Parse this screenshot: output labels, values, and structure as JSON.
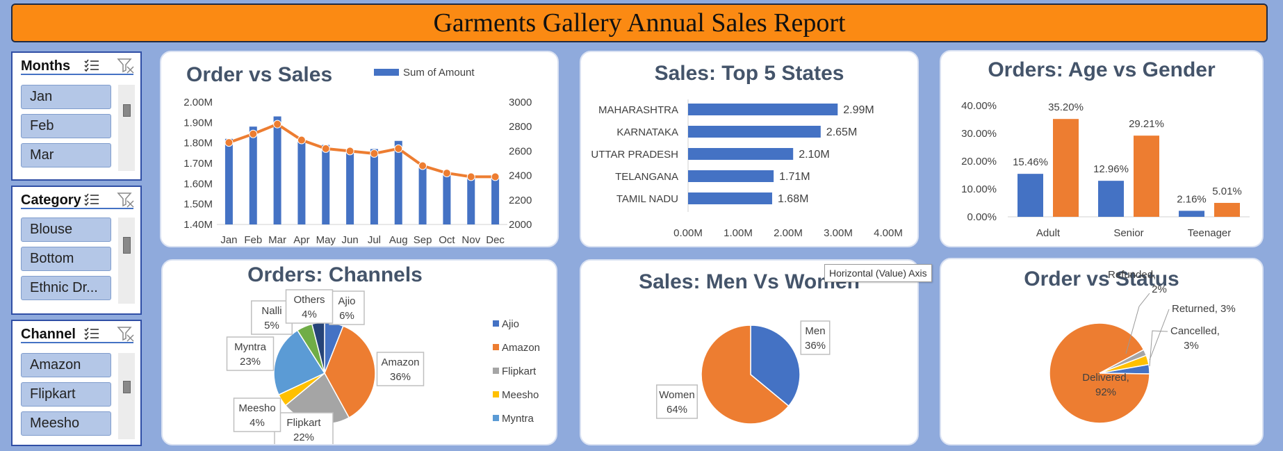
{
  "report_title": "Garments Gallery Annual Sales Report",
  "tooltip": "Horizontal (Value) Axis",
  "colors": {
    "background": "#8faadc",
    "title_bar": "#fb8a13",
    "blue": "#4472c4",
    "orange": "#ed7d31",
    "gray": "#a5a5a5",
    "yellow": "#ffc000",
    "light_blue": "#5b9bd5",
    "green": "#70ad47",
    "navy": "#264478"
  },
  "slicers": [
    {
      "title": "Months",
      "items": [
        "Jan",
        "Feb",
        "Mar"
      ],
      "icons": [
        "multi-select-icon",
        "clear-filter-icon"
      ]
    },
    {
      "title": "Category",
      "items": [
        "Blouse",
        "Bottom",
        "Ethnic Dr..."
      ],
      "icons": [
        "multi-select-icon",
        "clear-filter-icon"
      ]
    },
    {
      "title": "Channel",
      "items": [
        "Amazon",
        "Flipkart",
        "Meesho"
      ],
      "icons": [
        "multi-select-icon",
        "clear-filter-icon"
      ]
    }
  ],
  "chart_data": [
    {
      "id": "order_vs_sales",
      "type": "bar",
      "title": "Order vs Sales",
      "categories": [
        "Jan",
        "Feb",
        "Mar",
        "Apr",
        "May",
        "Jun",
        "Jul",
        "Aug",
        "Sep",
        "Oct",
        "Nov",
        "Dec"
      ],
      "series": [
        {
          "name": "Sum of Amount",
          "type": "bar",
          "axis": "left",
          "values": [
            1.82,
            1.88,
            1.93,
            1.81,
            1.79,
            1.76,
            1.77,
            1.81,
            1.68,
            1.65,
            1.63,
            1.63
          ]
        },
        {
          "type": "line",
          "axis": "right",
          "values": [
            2670,
            2740,
            2820,
            2690,
            2620,
            2600,
            2580,
            2620,
            2480,
            2420,
            2390,
            2390
          ]
        }
      ],
      "y_left": {
        "range": [
          1.4,
          2.0
        ],
        "ticks": [
          "1.40M",
          "1.50M",
          "1.60M",
          "1.70M",
          "1.80M",
          "1.90M",
          "2.00M"
        ]
      },
      "y_right": {
        "range": [
          2000,
          3000
        ],
        "ticks": [
          "2000",
          "2200",
          "2400",
          "2600",
          "2800",
          "3000"
        ]
      },
      "legend": "top"
    },
    {
      "id": "top5_states",
      "type": "bar",
      "orientation": "horizontal",
      "title": "Sales: Top 5 States",
      "categories": [
        "MAHARASHTRA",
        "KARNATAKA",
        "UTTAR PRADESH",
        "TELANGANA",
        "TAMIL NADU"
      ],
      "values": [
        2.99,
        2.65,
        2.1,
        1.71,
        1.68
      ],
      "labels": [
        "2.99M",
        "2.65M",
        "2.10M",
        "1.71M",
        "1.68M"
      ],
      "x_range": [
        0,
        4
      ],
      "x_ticks": [
        "0.00M",
        "1.00M",
        "2.00M",
        "3.00M",
        "4.00M"
      ]
    },
    {
      "id": "age_vs_gender",
      "type": "bar",
      "title": "Orders: Age vs Gender",
      "categories": [
        "Adult",
        "Senior",
        "Teenager"
      ],
      "series": [
        {
          "values": [
            15.46,
            12.96,
            2.16
          ],
          "labels": [
            "15.46%",
            "12.96%",
            "2.16%"
          ]
        },
        {
          "values": [
            35.2,
            29.21,
            5.01
          ],
          "labels": [
            "35.20%",
            "29.21%",
            "5.01%"
          ]
        }
      ],
      "y_range": [
        0,
        40
      ],
      "y_ticks": [
        "0.00%",
        "10.00%",
        "20.00%",
        "30.00%",
        "40.00%"
      ]
    },
    {
      "id": "channels",
      "type": "pie",
      "title": "Orders: Channels",
      "slices": [
        {
          "label": "Ajio",
          "name": "Ajio",
          "value": 6,
          "pct": "6%"
        },
        {
          "label": "Amazon",
          "name": "Amazon",
          "value": 36,
          "pct": "36%"
        },
        {
          "label": "Flipkart",
          "name": "Flipkart",
          "value": 22,
          "pct": "22%"
        },
        {
          "label": "Meesho",
          "name": "Meesho",
          "value": 4,
          "pct": "4%"
        },
        {
          "label": "Myntra",
          "name": "Myntra",
          "value": 23,
          "pct": "23%"
        },
        {
          "label": "Nalli",
          "value": 5,
          "pct": "5%"
        },
        {
          "label": "Others",
          "value": 4,
          "pct": "4%"
        }
      ],
      "legend_entries": [
        "Ajio",
        "Amazon",
        "Flipkart",
        "Meesho",
        "Myntra"
      ],
      "legend": "right"
    },
    {
      "id": "men_vs_women",
      "type": "pie",
      "title": "Sales: Men Vs Women",
      "slices": [
        {
          "label": "Men",
          "value": 36,
          "pct": "36%"
        },
        {
          "label": "Women",
          "value": 64,
          "pct": "64%"
        }
      ]
    },
    {
      "id": "order_status",
      "type": "pie",
      "title": "Order vs Status",
      "slices": [
        {
          "label": "Cancelled,",
          "value": 3,
          "pct": "3%"
        },
        {
          "label": "Delivered,",
          "value": 92,
          "pct": "92%"
        },
        {
          "label": "Refunded,",
          "value": 2,
          "pct": "2%"
        },
        {
          "label": "Returned, 3%",
          "value": 3,
          "pct": ""
        }
      ]
    }
  ]
}
